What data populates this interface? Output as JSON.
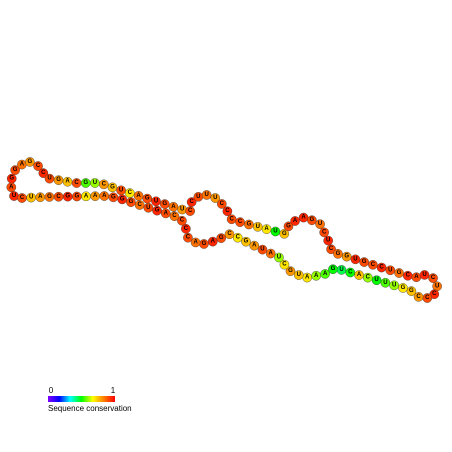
{
  "nucleotides": [
    "U",
    "A",
    "G",
    "G",
    "A",
    "G",
    "C",
    "C",
    "U",
    "G",
    "A",
    "C",
    "G",
    "U",
    "C",
    "G",
    "U",
    "C",
    "A",
    "G",
    "U",
    "G",
    "A",
    "U",
    "C",
    "C",
    "U",
    "U",
    "U",
    "C",
    "C",
    "C",
    "C",
    "G",
    "U",
    "A",
    "U",
    "G",
    "G",
    "A",
    "A",
    "G",
    "U",
    "C",
    "U",
    "C",
    "G",
    "G",
    "U",
    "G",
    "C",
    "C",
    "U",
    "G",
    "C",
    "A",
    "U",
    "C",
    "U",
    "C",
    "C",
    "C",
    "G",
    "G",
    "U",
    "U",
    "U",
    "C",
    "A",
    "C",
    "U",
    "G",
    "A",
    "A",
    "A",
    "U",
    "G",
    "C",
    "U",
    "A",
    "U",
    "A",
    "G",
    "C",
    "C",
    "G",
    "A",
    "G",
    "A",
    "C",
    "C",
    "C",
    "C",
    "A",
    "G",
    "U",
    "C",
    "G",
    "G",
    "G",
    "A",
    "A",
    "A",
    "G",
    "G",
    "C",
    "G",
    "A",
    "U",
    "C"
  ],
  "conservation": [
    0.95,
    0.9,
    0.95,
    0.9,
    0.85,
    0.8,
    0.9,
    0.95,
    0.9,
    0.8,
    0.75,
    0.9,
    0.55,
    0.6,
    0.8,
    0.75,
    0.9,
    0.7,
    0.85,
    0.9,
    0.95,
    0.9,
    0.85,
    0.8,
    0.9,
    0.95,
    0.9,
    0.85,
    0.8,
    0.9,
    0.95,
    0.9,
    0.9,
    0.85,
    0.75,
    0.7,
    0.5,
    0.75,
    0.9,
    0.95,
    0.95,
    0.9,
    0.85,
    0.9,
    0.95,
    0.9,
    0.85,
    0.8,
    0.95,
    0.9,
    0.9,
    0.95,
    0.9,
    0.85,
    0.95,
    0.9,
    0.95,
    0.9,
    0.85,
    0.95,
    0.9,
    0.8,
    0.75,
    0.7,
    0.6,
    0.55,
    0.5,
    0.6,
    0.75,
    0.5,
    0.45,
    0.5,
    0.55,
    0.6,
    0.7,
    0.75,
    0.8,
    0.7,
    0.6,
    0.85,
    0.9,
    0.8,
    0.75,
    0.7,
    0.8,
    0.9,
    0.95,
    0.9,
    0.85,
    0.9,
    0.95,
    0.9,
    0.85,
    0.9,
    0.95,
    0.9,
    0.85,
    0.9,
    0.95,
    0.9,
    0.85,
    0.8,
    0.7,
    0.9,
    0.95,
    0.9,
    0.85,
    0.8,
    0.75,
    0.9
  ],
  "legend": {
    "min": "0",
    "max": "1",
    "label": "Sequence conservation"
  }
}
